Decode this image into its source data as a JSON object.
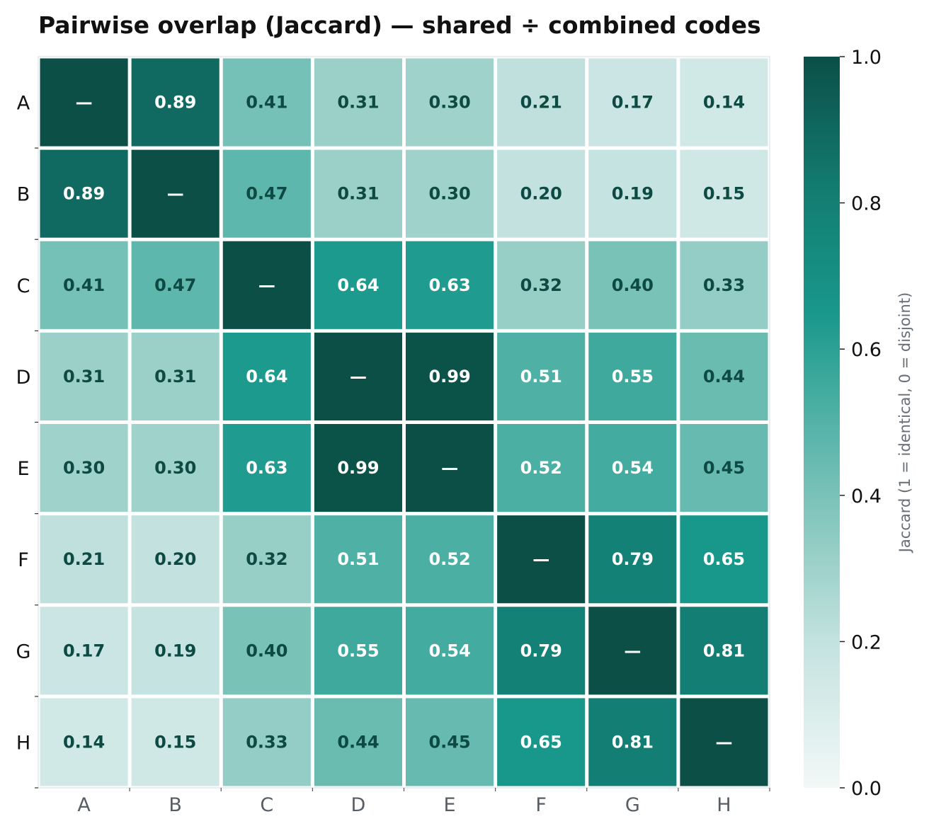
{
  "chart_data": {
    "type": "heatmap",
    "title": "Pairwise overlap (Jaccard) — shared ÷ combined codes",
    "rows": [
      "A",
      "B",
      "C",
      "D",
      "E",
      "F",
      "G",
      "H"
    ],
    "columns": [
      "A",
      "B",
      "C",
      "D",
      "E",
      "F",
      "G",
      "H"
    ],
    "values": [
      [
        1.0,
        0.89,
        0.41,
        0.31,
        0.3,
        0.21,
        0.17,
        0.14
      ],
      [
        0.89,
        1.0,
        0.47,
        0.31,
        0.3,
        0.2,
        0.19,
        0.15
      ],
      [
        0.41,
        0.47,
        1.0,
        0.64,
        0.63,
        0.32,
        0.4,
        0.33
      ],
      [
        0.31,
        0.31,
        0.64,
        1.0,
        0.99,
        0.51,
        0.55,
        0.44
      ],
      [
        0.3,
        0.3,
        0.63,
        0.99,
        1.0,
        0.52,
        0.54,
        0.45
      ],
      [
        0.21,
        0.2,
        0.32,
        0.51,
        0.52,
        1.0,
        0.79,
        0.65
      ],
      [
        0.17,
        0.19,
        0.4,
        0.55,
        0.54,
        0.79,
        1.0,
        0.81
      ],
      [
        0.14,
        0.15,
        0.33,
        0.44,
        0.45,
        0.65,
        0.81,
        1.0
      ]
    ],
    "diagonal_label": "—",
    "colorbar": {
      "label": "Jaccard (1 = identical, 0 = disjoint)",
      "range": [
        0.0,
        1.0
      ],
      "ticks": [
        "0.0",
        "0.2",
        "0.4",
        "0.6",
        "0.8",
        "1.0"
      ]
    },
    "colors": {
      "low": "#f2f8f7",
      "high": "#0b4f47",
      "mid_colors": [
        "#f2f8f7",
        "#c3e2df",
        "#8ccac1",
        "#53b2a7",
        "#18988b",
        "#137c71",
        "#0b4f47"
      ],
      "text_dark": "#0d4a43",
      "text_light": "#ffffff",
      "cell_border": "#ffffff"
    }
  }
}
